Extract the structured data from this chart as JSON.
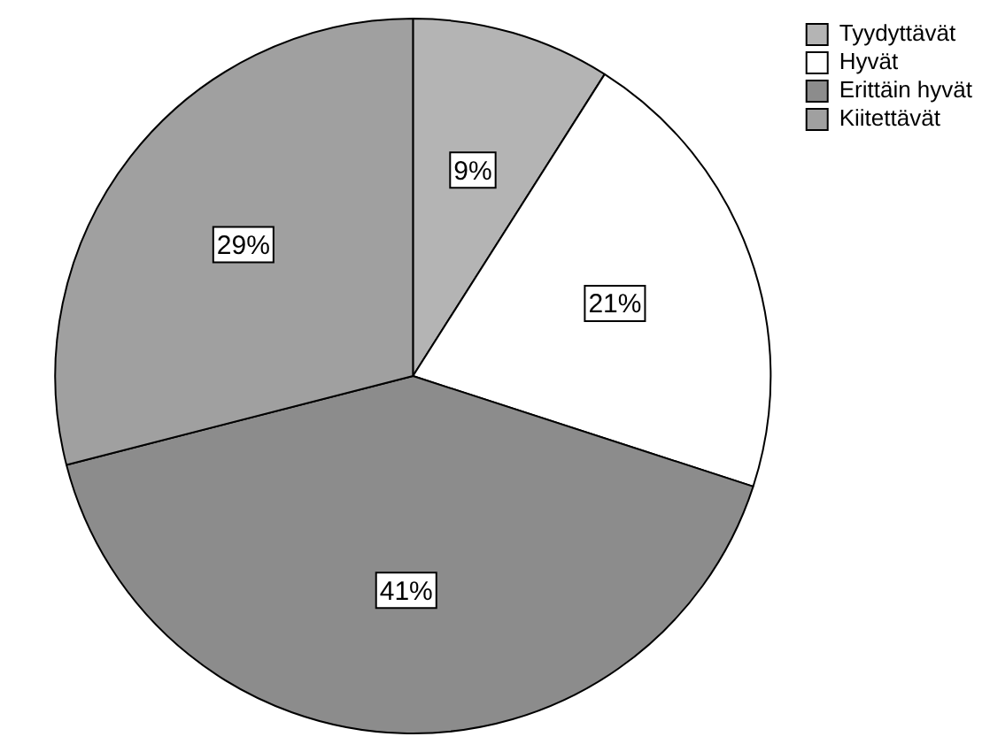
{
  "chart_data": {
    "type": "pie",
    "categories": [
      "Tyydyttävät",
      "Hyvät",
      "Erittäin hyvät",
      "Kiitettävät"
    ],
    "values": [
      9,
      21,
      41,
      29
    ],
    "value_labels": [
      "9%",
      "21%",
      "41%",
      "29%"
    ],
    "colors": [
      "#b4b4b4",
      "#ffffff",
      "#8c8c8c",
      "#a0a0a0"
    ],
    "legend": "top right"
  }
}
